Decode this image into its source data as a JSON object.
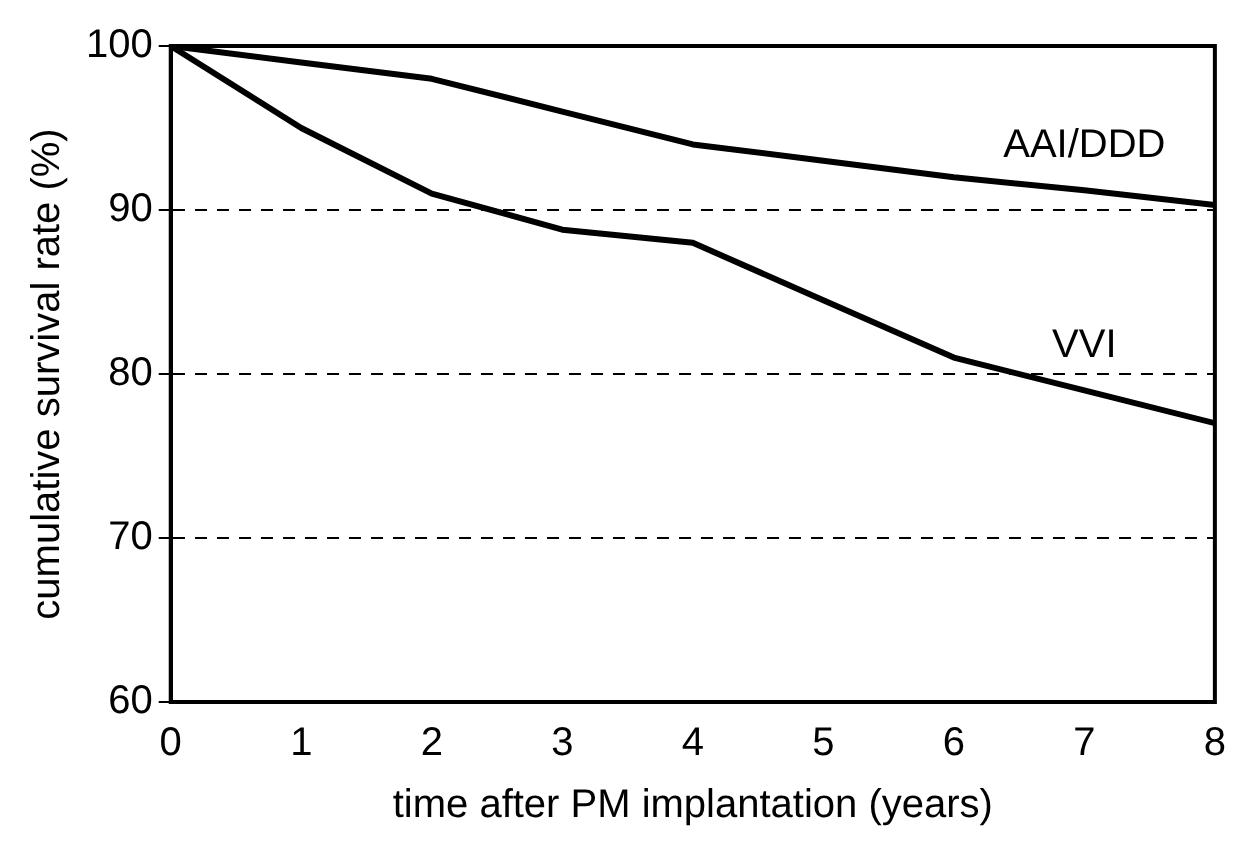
{
  "chart_data": {
    "type": "line",
    "xlabel": "time after PM implantation (years)",
    "ylabel": "cumulative survival rate (%)",
    "x": [
      0,
      1,
      2,
      3,
      4,
      5,
      6,
      7,
      8
    ],
    "series": [
      {
        "name": "AAI/DDD",
        "color": "#000000",
        "values": [
          100,
          99,
          98,
          96,
          94,
          93,
          92,
          91.2,
          90.3
        ]
      },
      {
        "name": "VVI",
        "color": "#000000",
        "values": [
          100,
          95,
          91,
          88.8,
          88,
          84.5,
          81,
          79,
          77
        ]
      }
    ],
    "xlim": [
      0,
      8
    ],
    "xticks": [
      0,
      1,
      2,
      3,
      4,
      5,
      6,
      7,
      8
    ],
    "ylim": [
      60,
      100
    ],
    "yticks": [
      60,
      70,
      80,
      90,
      100
    ],
    "grid": "y",
    "marker": "none",
    "line_style": "solid",
    "legend": false
  }
}
